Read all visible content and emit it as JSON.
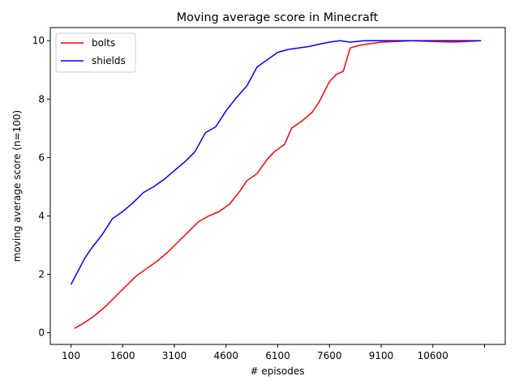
{
  "chart_data": {
    "type": "line",
    "title": "Moving average score in Minecraft",
    "xlabel": "# episodes",
    "ylabel": "moving average score (n=100)",
    "xlim": [
      -500,
      12700
    ],
    "ylim": [
      -0.4,
      10.45
    ],
    "xticks": [
      {
        "value": 100,
        "label": "100"
      },
      {
        "value": 1600,
        "label": "1600"
      },
      {
        "value": 3100,
        "label": "3100"
      },
      {
        "value": 4600,
        "label": "4600"
      },
      {
        "value": 6100,
        "label": "6100"
      },
      {
        "value": 7600,
        "label": "7600"
      },
      {
        "value": 9100,
        "label": "9100"
      },
      {
        "value": 10600,
        "label": "10600"
      },
      {
        "value": 12100,
        "label": ""
      }
    ],
    "yticks": [
      {
        "value": 0,
        "label": "0"
      },
      {
        "value": 2,
        "label": "2"
      },
      {
        "value": 4,
        "label": "4"
      },
      {
        "value": 6,
        "label": "6"
      },
      {
        "value": 8,
        "label": "8"
      },
      {
        "value": 10,
        "label": "10"
      }
    ],
    "grid": false,
    "legend": "top-left",
    "series": [
      {
        "name": "bolts",
        "color": "#ff0000",
        "x": [
          200,
          500,
          800,
          1100,
          1400,
          1700,
          2000,
          2300,
          2600,
          2900,
          3200,
          3500,
          3800,
          4100,
          4400,
          4700,
          5000,
          5200,
          5500,
          5800,
          6000,
          6300,
          6500,
          6800,
          7100,
          7300,
          7600,
          7800,
          8000,
          8200,
          8500,
          8800,
          9100,
          9500,
          10000,
          10600,
          11200,
          12000
        ],
        "y": [
          0.15,
          0.35,
          0.6,
          0.9,
          1.25,
          1.6,
          1.95,
          2.2,
          2.45,
          2.75,
          3.1,
          3.45,
          3.8,
          4.0,
          4.15,
          4.4,
          4.85,
          5.2,
          5.45,
          5.95,
          6.2,
          6.45,
          7.0,
          7.25,
          7.55,
          7.9,
          8.6,
          8.85,
          8.95,
          9.75,
          9.85,
          9.9,
          9.95,
          9.97,
          10.0,
          9.97,
          9.95,
          10.0
        ]
      },
      {
        "name": "shields",
        "color": "#0000ff",
        "x": [
          100,
          300,
          500,
          700,
          1000,
          1300,
          1600,
          1900,
          2200,
          2500,
          2800,
          3100,
          3400,
          3700,
          4000,
          4300,
          4600,
          4900,
          5200,
          5500,
          5800,
          6100,
          6400,
          6700,
          7000,
          7300,
          7600,
          7900,
          8200,
          8600,
          9000,
          9500,
          10000,
          11000,
          12000
        ],
        "y": [
          1.65,
          2.1,
          2.55,
          2.9,
          3.35,
          3.9,
          4.15,
          4.45,
          4.8,
          5.0,
          5.25,
          5.55,
          5.85,
          6.2,
          6.85,
          7.05,
          7.6,
          8.05,
          8.45,
          9.1,
          9.35,
          9.6,
          9.7,
          9.75,
          9.8,
          9.88,
          9.95,
          10.0,
          9.95,
          10.0,
          10.0,
          10.0,
          10.0,
          10.0,
          10.0
        ]
      }
    ]
  }
}
